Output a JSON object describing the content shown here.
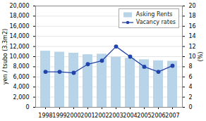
{
  "chart_data": {
    "type": "bar",
    "x": [
      1998,
      1999,
      2000,
      2001,
      2002,
      2003,
      2004,
      2005,
      2006,
      2007
    ],
    "ylabel": "yen / tsubo (3.3m2)",
    "y2label": "(%)",
    "ylim": [
      0,
      20000
    ],
    "yticks": [
      0,
      {
        "value": 2000,
        "label": "2,000"
      },
      {
        "value": 4000,
        "label": "4,000"
      },
      {
        "value": 6000,
        "label": "6,000"
      },
      {
        "value": 8000,
        "label": "8,000"
      },
      {
        "value": 10000,
        "label": "10,000"
      },
      {
        "value": 12000,
        "label": "12,000"
      },
      {
        "value": 14000,
        "label": "14,000"
      },
      {
        "value": 16000,
        "label": "16,000"
      },
      {
        "value": 18000,
        "label": "18,000"
      },
      {
        "value": 20000,
        "label": "20,000"
      }
    ],
    "y2lim": [
      0,
      20
    ],
    "y2ticks": [
      0,
      2,
      4,
      6,
      8,
      10,
      12,
      14,
      16,
      18,
      20
    ],
    "grid": true,
    "legend": "upper right",
    "series": [
      {
        "name": "Asking Rents",
        "type": "bar",
        "color": "#b8d4e8",
        "values": [
          11100,
          10900,
          10700,
          10400,
          10500,
          9900,
          9700,
          9400,
          9200,
          9100
        ]
      },
      {
        "name": "Vacancy rates",
        "type": "line",
        "axis": "y2",
        "color": "#2244aa",
        "marker": "circle",
        "values": [
          7.0,
          7.0,
          6.8,
          8.5,
          9.2,
          12.0,
          10.0,
          8.0,
          7.0,
          8.2
        ]
      }
    ]
  }
}
